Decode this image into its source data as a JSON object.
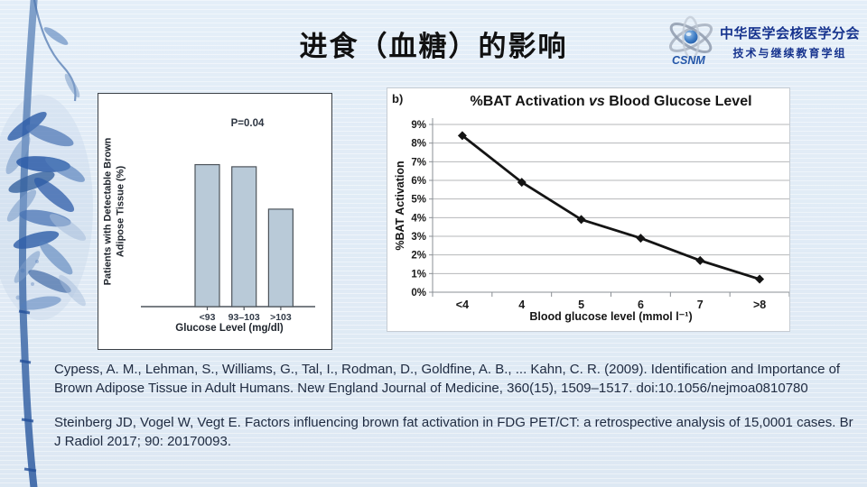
{
  "slide": {
    "title": "进食（血糖）的影响",
    "background_color": "#e0ebf6"
  },
  "logo": {
    "org_line1": "中华医学会核医学分会",
    "org_line2": "技术与继续教育学组",
    "acronym": "CSNM",
    "text_color": "#16338e"
  },
  "chart_data": [
    {
      "type": "bar",
      "p_value_label": "P=0.04",
      "ylabel_line1": "Patients with Detectable Brown",
      "ylabel_line2": "Adipose Tissue (%)",
      "xlabel": "Glucose Level (mg/dl)",
      "categories": [
        "<93",
        "93–103",
        ">103"
      ],
      "values": [
        67,
        66,
        46
      ],
      "ylim": [
        0,
        100
      ],
      "y_axis_labeled": false,
      "bar_color": "#b9cad8",
      "bar_border": "#4d545b",
      "axis_color": "#4d545b",
      "tick_label_color": "#313a47"
    },
    {
      "type": "line",
      "panel_label": "b)",
      "title_prefix": "%BAT Activation ",
      "title_vs": "vs",
      "title_suffix": " Blood Glucose Level",
      "ylabel": "%BAT Activation",
      "xlabel": "Blood glucose level (mmol l⁻¹)",
      "categories": [
        "<4",
        "4",
        "5",
        "6",
        "7",
        ">8"
      ],
      "values": [
        8.4,
        5.9,
        3.9,
        2.9,
        1.7,
        0.7
      ],
      "ylim": [
        0,
        9
      ],
      "y_step": 1,
      "y_tick_suffix": "%",
      "grid": true,
      "line_color": "#141414",
      "marker": "diamond",
      "grid_color": "#b4b7ba",
      "axis_color": "#8a8f94",
      "tick_label_color": "#1a1a1a"
    }
  ],
  "citations": [
    {
      "line1": "Cypess, A. M., Lehman, S., Williams, G., Tal, I., Rodman, D., Goldfine, A. B., ... Kahn, C. R. (2009). Identification and Importance of",
      "line2": "Brown Adipose Tissue in Adult Humans. New England Journal of Medicine, 360(15), 1509–1517. doi:10.1056/nejmoa0810780"
    },
    {
      "line1": "Steinberg JD, Vogel W, Vegt E. Factors influencing brown fat activation in FDG PET/CT: a retrospective analysis of 15,0001 cases. Br",
      "line2": "J Radiol 2017; 90: 20170093."
    }
  ]
}
